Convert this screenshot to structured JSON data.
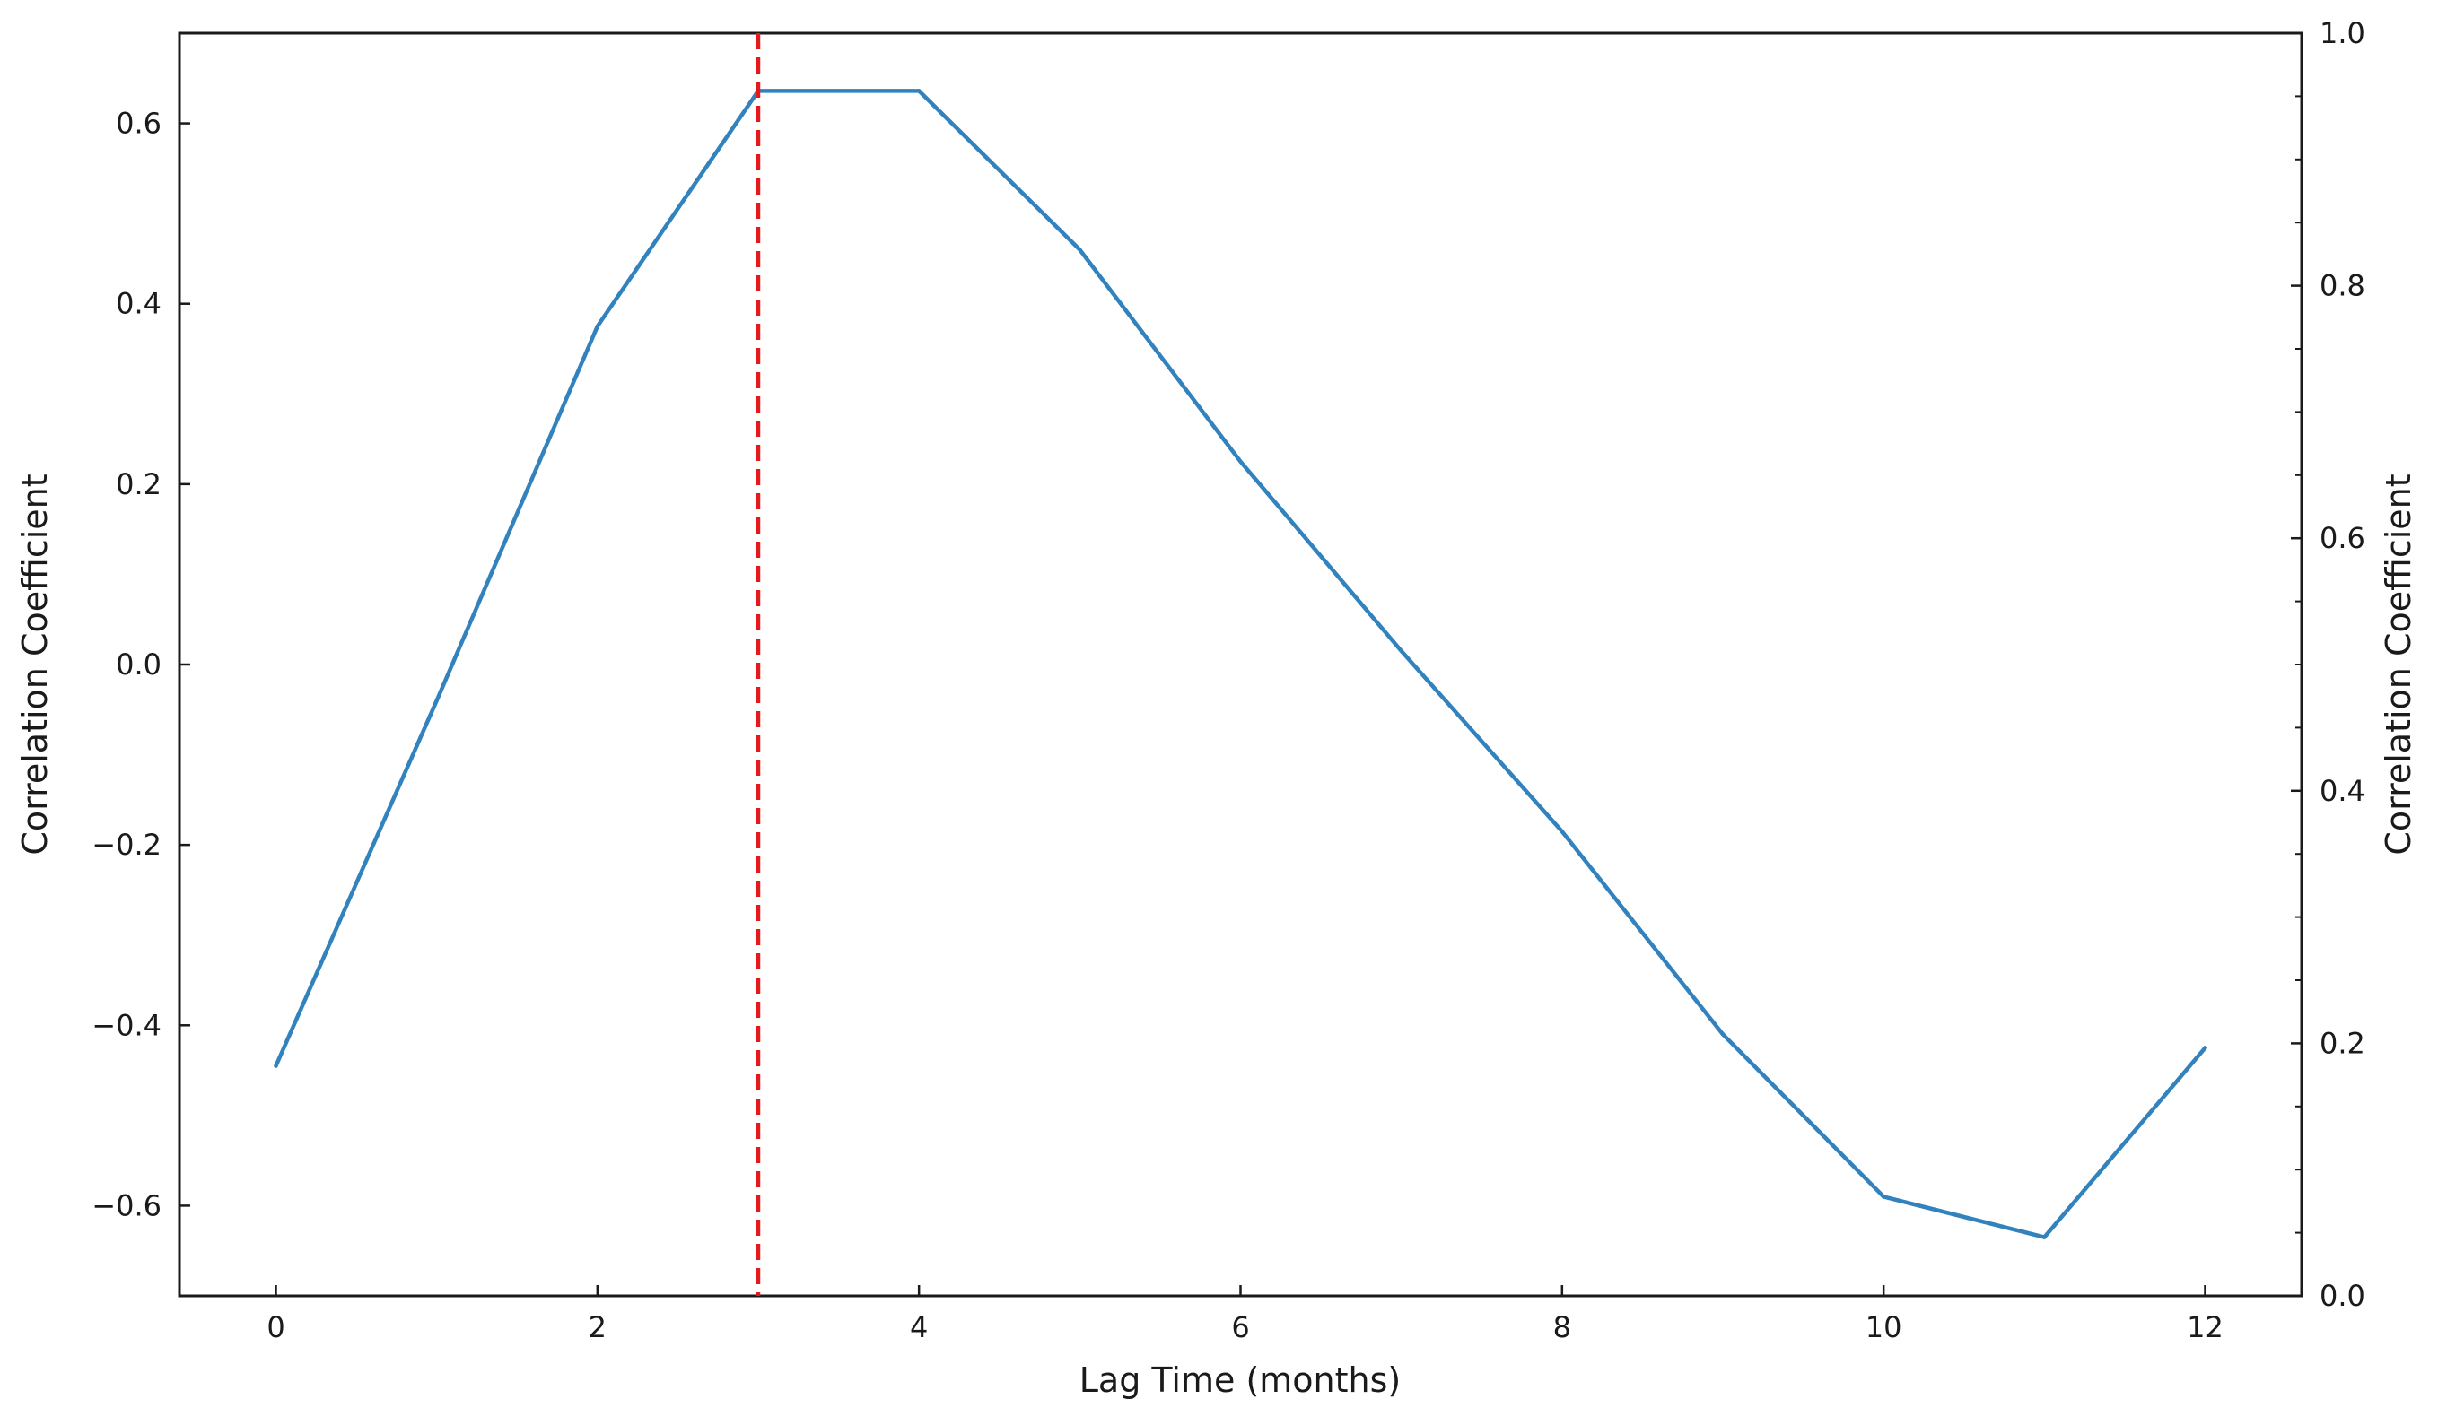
{
  "chart_data": {
    "type": "line",
    "xlabel": "Lag Time (months)",
    "ylabel": "Correlation Coefficient",
    "ylabel_right": "Correlation Coefficient",
    "xlim": [
      -0.6,
      12.6
    ],
    "ylim": [
      -0.7,
      0.7
    ],
    "ylim_right": [
      0.0,
      1.0
    ],
    "x_ticks": [
      0,
      2,
      4,
      6,
      8,
      10,
      12
    ],
    "y_ticks": [
      -0.6,
      -0.4,
      -0.2,
      0.0,
      0.2,
      0.4,
      0.6
    ],
    "y_tick_labels": [
      "−0.6",
      "−0.4",
      "−0.2",
      "0.0",
      "0.2",
      "0.4",
      "0.6"
    ],
    "y_right_ticks": [
      0.0,
      0.2,
      0.4,
      0.6,
      0.8,
      1.0
    ],
    "y_right_tick_labels": [
      "0.0",
      "0.2",
      "0.4",
      "0.6",
      "0.8",
      "1.0"
    ],
    "grid": false,
    "series": [
      {
        "x": [
          0,
          1,
          2,
          3,
          4,
          5,
          6,
          7,
          8,
          9,
          10,
          11,
          12
        ],
        "values": [
          -0.445,
          -0.04,
          0.375,
          0.636,
          0.636,
          0.46,
          0.225,
          0.015,
          -0.185,
          -0.41,
          -0.59,
          -0.635,
          -0.425
        ],
        "color": "#3182bd"
      }
    ],
    "reference_line": {
      "x": 3,
      "color": "#e31a1c",
      "style": "dashed"
    }
  }
}
